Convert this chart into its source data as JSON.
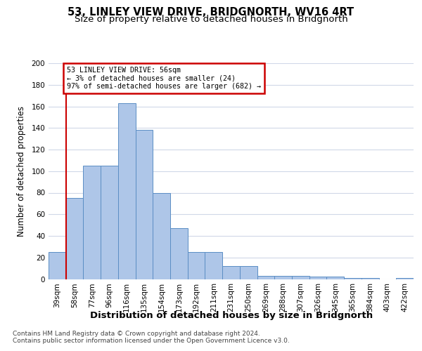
{
  "title": "53, LINLEY VIEW DRIVE, BRIDGNORTH, WV16 4RT",
  "subtitle": "Size of property relative to detached houses in Bridgnorth",
  "xlabel": "Distribution of detached houses by size in Bridgnorth",
  "ylabel": "Number of detached properties",
  "categories": [
    "39sqm",
    "58sqm",
    "77sqm",
    "96sqm",
    "116sqm",
    "135sqm",
    "154sqm",
    "173sqm",
    "192sqm",
    "211sqm",
    "231sqm",
    "250sqm",
    "269sqm",
    "288sqm",
    "307sqm",
    "326sqm",
    "345sqm",
    "365sqm",
    "384sqm",
    "403sqm",
    "422sqm"
  ],
  "values": [
    25,
    75,
    105,
    105,
    163,
    138,
    80,
    47,
    25,
    25,
    12,
    12,
    3,
    3,
    3,
    2,
    2,
    1,
    1,
    0,
    1
  ],
  "bar_color": "#aec6e8",
  "bar_edge_color": "#5b8ec4",
  "highlight_line_color": "#cc0000",
  "annotation_box_text": "53 LINLEY VIEW DRIVE: 56sqm\n← 3% of detached houses are smaller (24)\n97% of semi-detached houses are larger (682) →",
  "annotation_box_color": "#cc0000",
  "ylim": [
    0,
    200
  ],
  "yticks": [
    0,
    20,
    40,
    60,
    80,
    100,
    120,
    140,
    160,
    180,
    200
  ],
  "grid_color": "#d0d8e8",
  "background_color": "#ffffff",
  "title_fontsize": 10.5,
  "subtitle_fontsize": 9.5,
  "xlabel_fontsize": 9.5,
  "ylabel_fontsize": 8.5,
  "tick_fontsize": 7.5,
  "footer_text": "Contains HM Land Registry data © Crown copyright and database right 2024.\nContains public sector information licensed under the Open Government Licence v3.0.",
  "footer_fontsize": 6.5
}
